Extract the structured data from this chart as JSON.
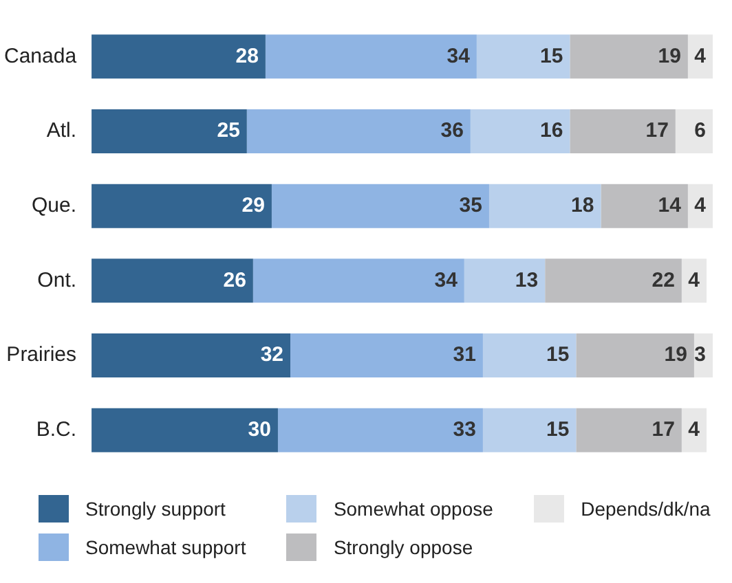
{
  "chart_data": {
    "type": "bar",
    "orientation": "horizontal",
    "stacked": true,
    "data_labels": true,
    "legend": "bottom",
    "categories": [
      "Canada",
      "Atl.",
      "Que.",
      "Ont.",
      "Prairies",
      "B.C."
    ],
    "series": [
      {
        "name": "Strongly support",
        "color": "#336591",
        "values": [
          28,
          25,
          29,
          26,
          32,
          30
        ]
      },
      {
        "name": "Somewhat support",
        "color": "#8fb4e3",
        "values": [
          34,
          36,
          35,
          34,
          31,
          33
        ]
      },
      {
        "name": "Somewhat oppose",
        "color": "#b9d0ec",
        "values": [
          15,
          16,
          18,
          13,
          15,
          15
        ]
      },
      {
        "name": "Strongly oppose",
        "color": "#bdbdbf",
        "values": [
          19,
          17,
          14,
          22,
          19,
          17
        ]
      },
      {
        "name": "Depends/dk/na",
        "color": "#e8e8e8",
        "values": [
          4,
          6,
          4,
          4,
          3,
          4
        ]
      }
    ]
  }
}
